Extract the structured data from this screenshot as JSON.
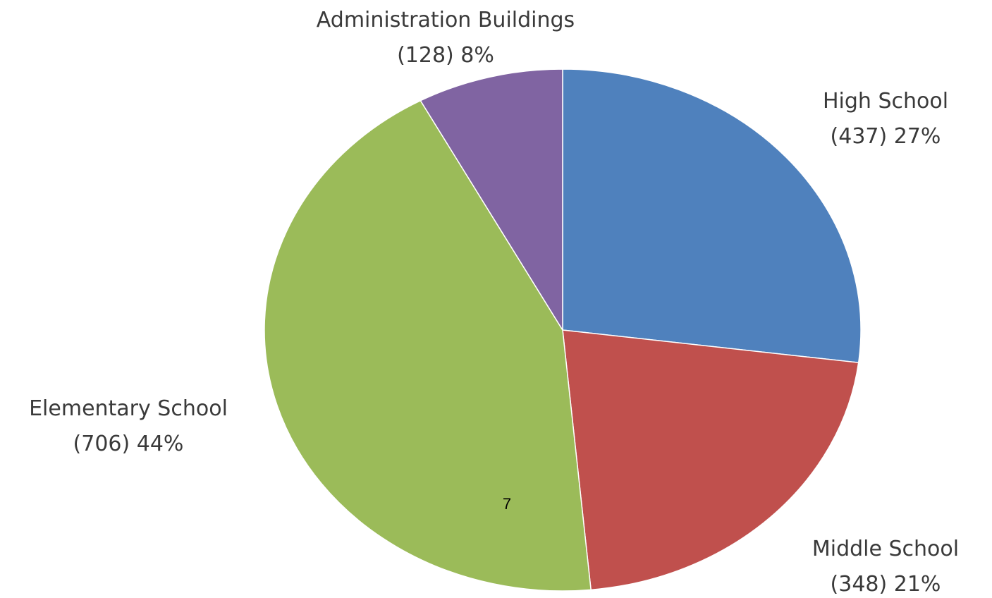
{
  "chart_data": {
    "type": "pie",
    "title": "",
    "slices": [
      {
        "name": "High School",
        "count": 437,
        "percent": 27,
        "count_label": "(437)",
        "percent_label": "27%",
        "color": "#4f81bd"
      },
      {
        "name": "Middle School",
        "count": 348,
        "percent": 21,
        "count_label": "(348)",
        "percent_label": "21%",
        "color": "#c0504d"
      },
      {
        "name": "Elementary School",
        "count": 706,
        "percent": 44,
        "count_label": "(706)",
        "percent_label": "44%",
        "color": "#9bbb59"
      },
      {
        "name": "Administration Buildings",
        "count": 128,
        "percent": 8,
        "count_label": "(128)",
        "percent_label": "8%",
        "color": "#8064a2"
      }
    ],
    "legend": "none",
    "start_angle": "12 o'clock",
    "direction": "clockwise"
  },
  "page_number": "7"
}
